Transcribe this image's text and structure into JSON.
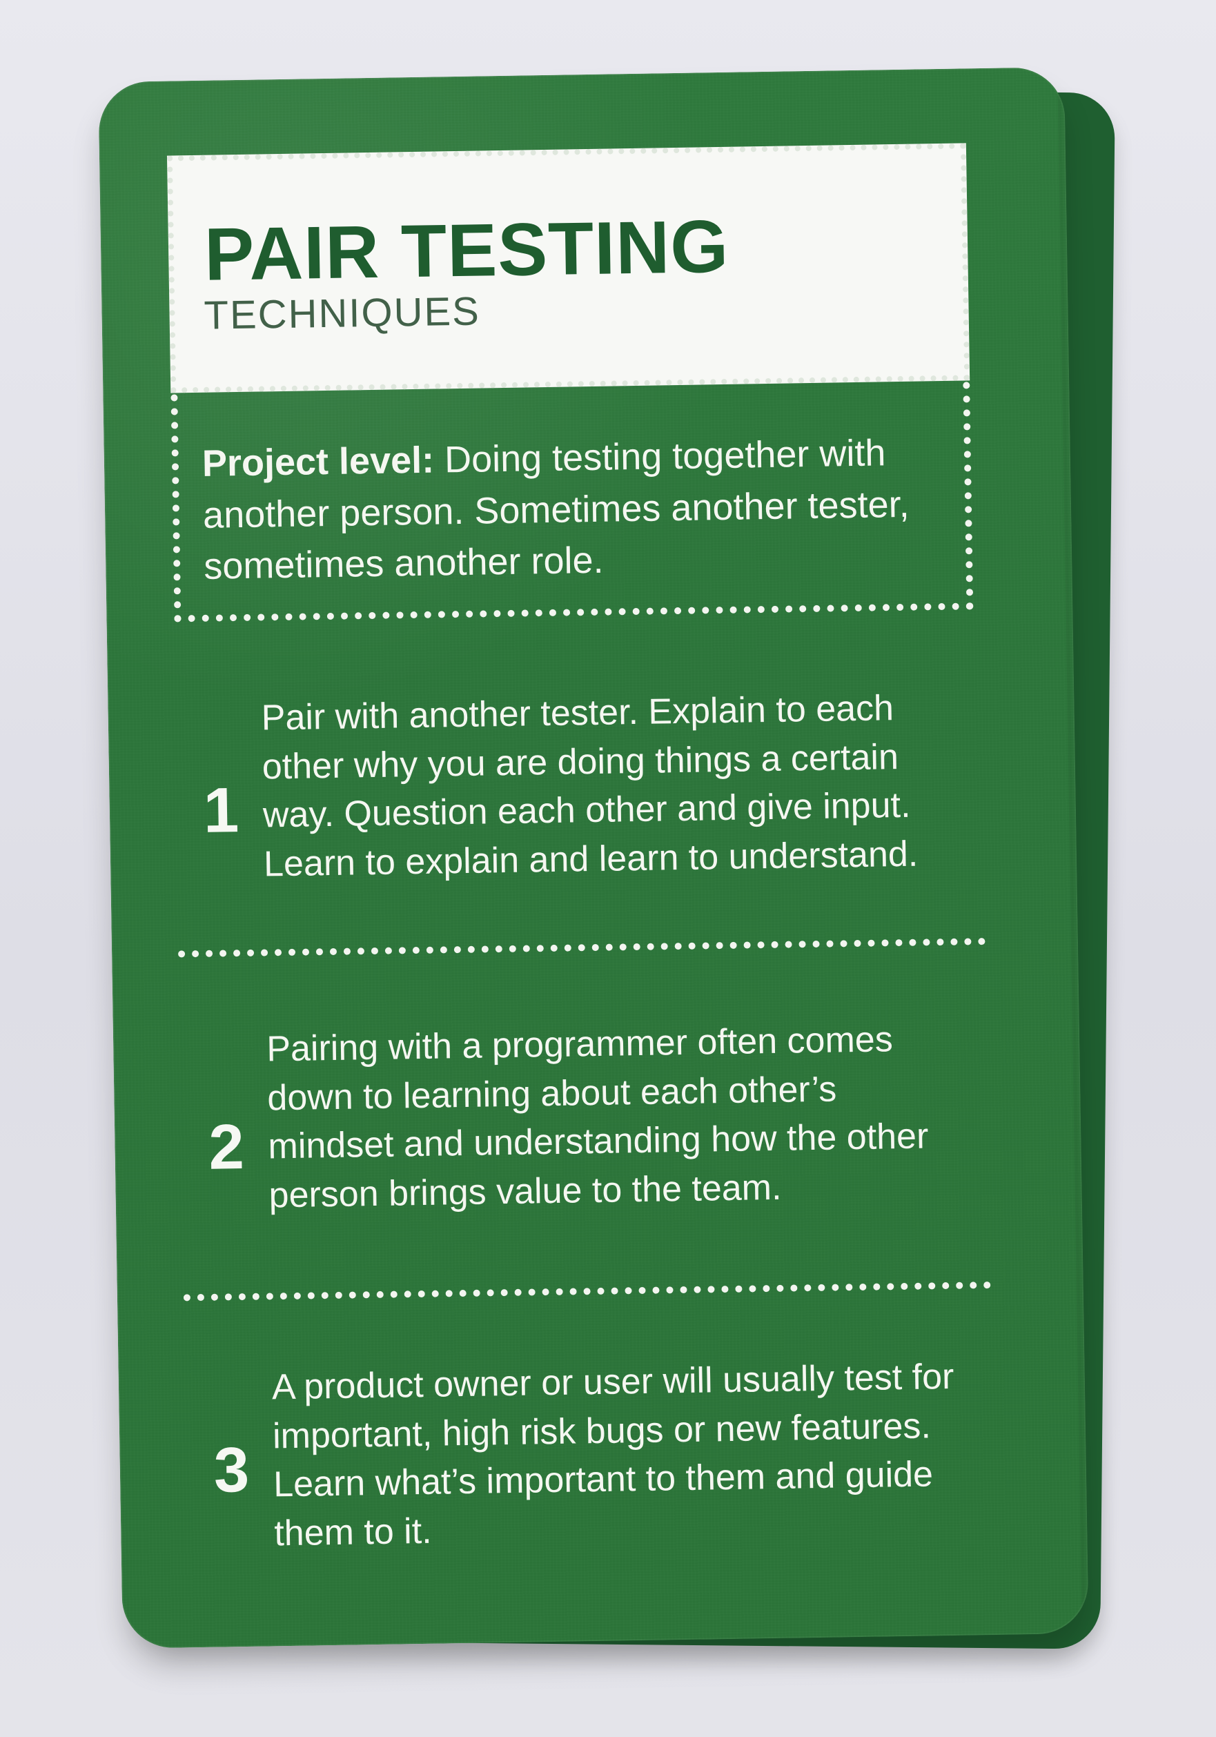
{
  "card": {
    "title": "PAIR TESTING",
    "subtitle": "TECHNIQUES",
    "summary": {
      "label": "Project level:",
      "text": " Doing testing together with another person. Sometimes another tester, sometimes another role."
    },
    "sections": [
      {
        "number": "1",
        "text": "Pair with another tester. Explain to each other why you are doing things a certain way. Question each other and give input. Learn to explain and learn to understand."
      },
      {
        "number": "2",
        "text": "Pairing with a programmer often comes down to learning about each other’s mindset and understanding how the other person brings value to the team."
      },
      {
        "number": "3",
        "text": "A product owner or user will usually test for important, high risk bugs or new features. Learn what’s important to them and guide them to it."
      }
    ]
  },
  "colors": {
    "card_green": "#2f7a3d",
    "title_green": "#1f5d2f",
    "text_light": "#f5f7f1",
    "title_box_bg": "#f7f8f5"
  }
}
